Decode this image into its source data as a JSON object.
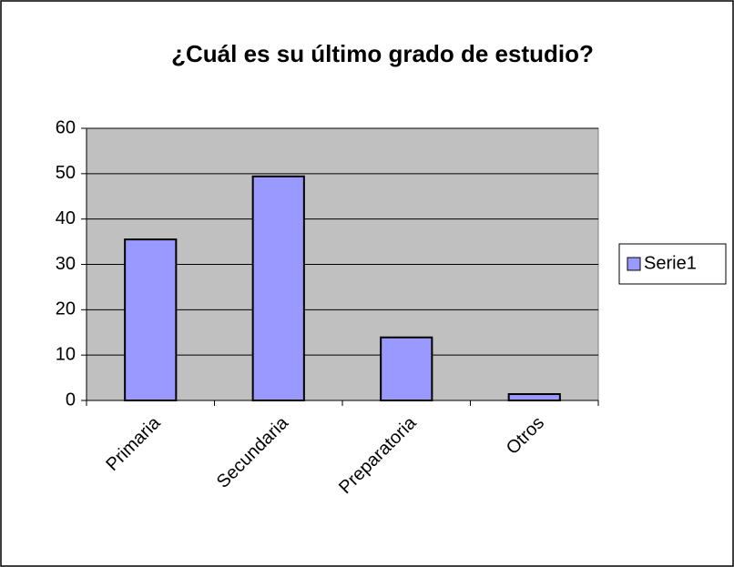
{
  "chart_data": {
    "type": "bar",
    "title": "¿Cuál es su último grado de estudio?",
    "categories": [
      "Primaria",
      "Secundaria",
      "Preparatoria",
      "Otros"
    ],
    "series": [
      {
        "name": "Serie1",
        "color": "#9999ff",
        "values": [
          35.5,
          49.4,
          13.9,
          1.4
        ]
      }
    ],
    "ylim": [
      0,
      60
    ],
    "yticks": [
      0,
      10,
      20,
      30,
      40,
      50,
      60
    ],
    "grid": true,
    "legend": "right"
  }
}
